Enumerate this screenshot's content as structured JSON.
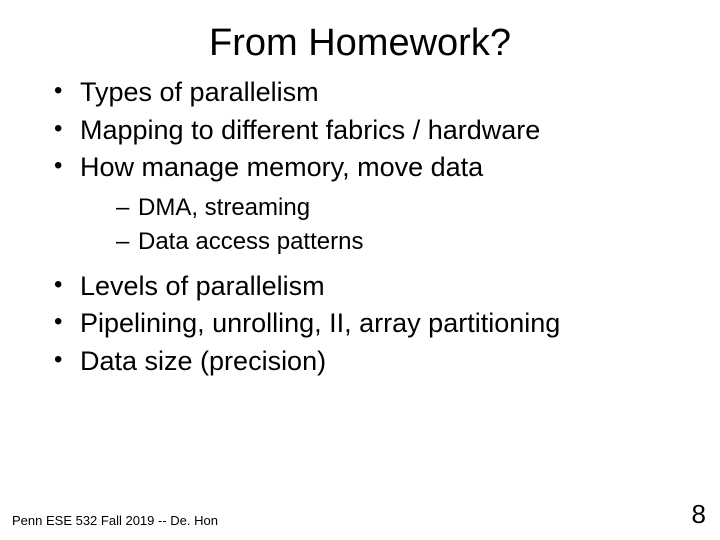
{
  "slide": {
    "title": "From Homework?",
    "bullets_top": [
      "Types of parallelism",
      "Mapping to different fabrics / hardware",
      "How manage memory, move data"
    ],
    "sub_bullets": [
      "DMA, streaming",
      "Data access patterns"
    ],
    "bullets_bottom": [
      "Levels of parallelism",
      "Pipelining, unrolling, II, array partitioning",
      "Data size (precision)"
    ],
    "footer_left": "Penn ESE 532 Fall 2019 -- De. Hon",
    "page_number": "8"
  },
  "style": {
    "background_color": "#ffffff",
    "text_color": "#000000",
    "title_fontsize": 38,
    "bullet_fontsize": 27,
    "sub_bullet_fontsize": 24,
    "footer_fontsize": 13,
    "page_number_fontsize": 26,
    "font_family": "Arial"
  }
}
